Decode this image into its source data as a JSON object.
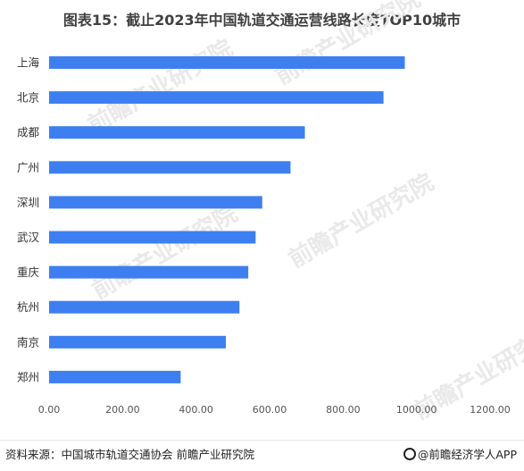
{
  "title": "图表15：截止2023年中国轨道交通运营线路长度TOP10城市",
  "chart_data": {
    "type": "bar",
    "orientation": "horizontal",
    "categories": [
      "上海",
      "北京",
      "成都",
      "广州",
      "深圳",
      "武汉",
      "重庆",
      "杭州",
      "南京",
      "郑州"
    ],
    "values": [
      968,
      910,
      696,
      657,
      580,
      562,
      542,
      518,
      481,
      358
    ],
    "xlim": [
      0,
      1200
    ],
    "x_ticks": [
      "0.00",
      "200.00",
      "400.00",
      "600.00",
      "800.00",
      "1000.00",
      "1200.00"
    ],
    "grid": false,
    "bar_color": "#3d7ff0"
  },
  "footer": {
    "source": "资料来源：中国城市轨道交通协会 前瞻产业研究院",
    "brand": "@前瞻经济学人APP"
  },
  "watermark": "前瞻产业研究院"
}
